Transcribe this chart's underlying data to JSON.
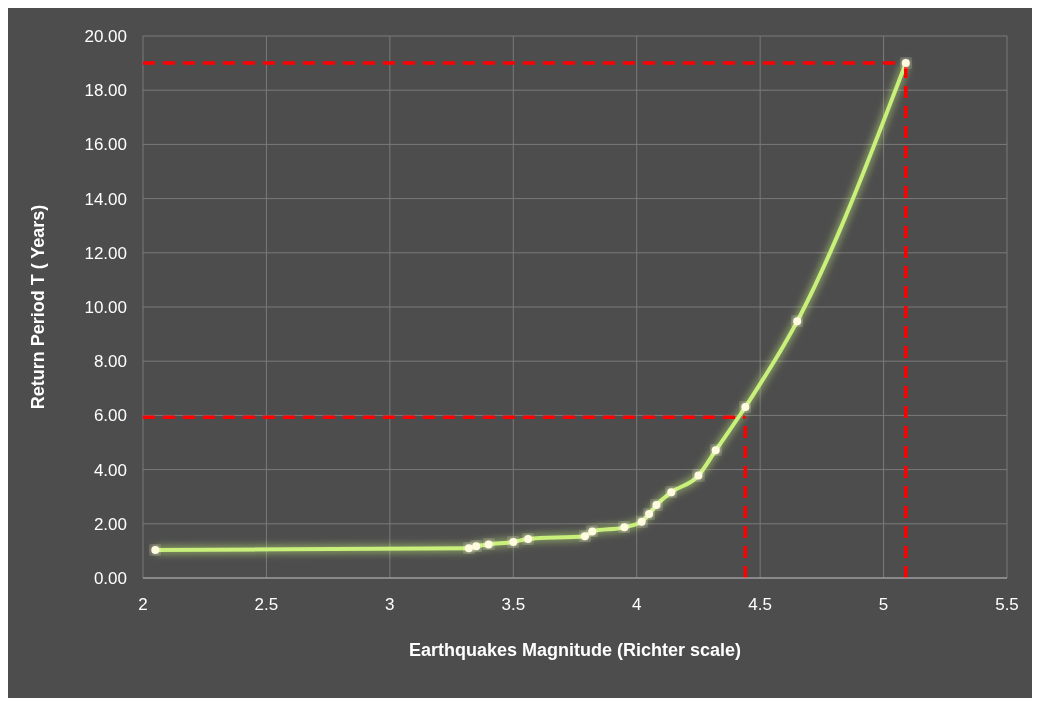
{
  "chart_data": {
    "type": "line",
    "xlabel": "Earthquakes Magnitude (Richter scale)",
    "ylabel": "Return Period T ( Years)",
    "x": [
      2.05,
      3.32,
      3.35,
      3.4,
      3.5,
      3.56,
      3.79,
      3.82,
      3.95,
      4.02,
      4.05,
      4.08,
      4.14,
      4.25,
      4.32,
      4.44,
      4.65,
      5.09
    ],
    "series": [
      {
        "color": "#c8f07a",
        "values": [
          1.03,
          1.1,
          1.17,
          1.24,
          1.33,
          1.44,
          1.54,
          1.72,
          1.87,
          2.08,
          2.36,
          2.69,
          3.16,
          3.78,
          4.71,
          6.31,
          9.47,
          19
        ]
      }
    ],
    "xlim": [
      2,
      5.5
    ],
    "xticks": [
      2,
      2.5,
      3,
      3.5,
      4,
      4.5,
      5,
      5.5
    ],
    "ylim": [
      0,
      20
    ],
    "yticks": [
      {
        "value": 0,
        "label": "0.00"
      },
      {
        "value": 2,
        "label": "2.00"
      },
      {
        "value": 4,
        "label": "4.00"
      },
      {
        "value": 6,
        "label": "6.00"
      },
      {
        "value": 8,
        "label": "8.00"
      },
      {
        "value": 10,
        "label": "10.00"
      },
      {
        "value": 12,
        "label": "12.00"
      },
      {
        "value": 14,
        "label": "14.00"
      },
      {
        "value": 16,
        "label": "16.00"
      },
      {
        "value": 18,
        "label": "18.00"
      },
      {
        "value": 20,
        "label": "20.00"
      }
    ],
    "ref_lines": [
      {
        "axis": "y",
        "value": 5.93,
        "color": "#ff0000",
        "line_style": "dashed"
      },
      {
        "axis": "x",
        "value": 4.44,
        "color": "#ff0000",
        "line_style": "dashed"
      },
      {
        "axis": "y",
        "value": 19,
        "color": "#ff0000",
        "line_style": "dashed"
      },
      {
        "axis": "x",
        "value": 5.09,
        "color": "#ff0000",
        "line_style": "dashed"
      }
    ],
    "grid": true,
    "marker": "circle",
    "line_style": "solid"
  }
}
